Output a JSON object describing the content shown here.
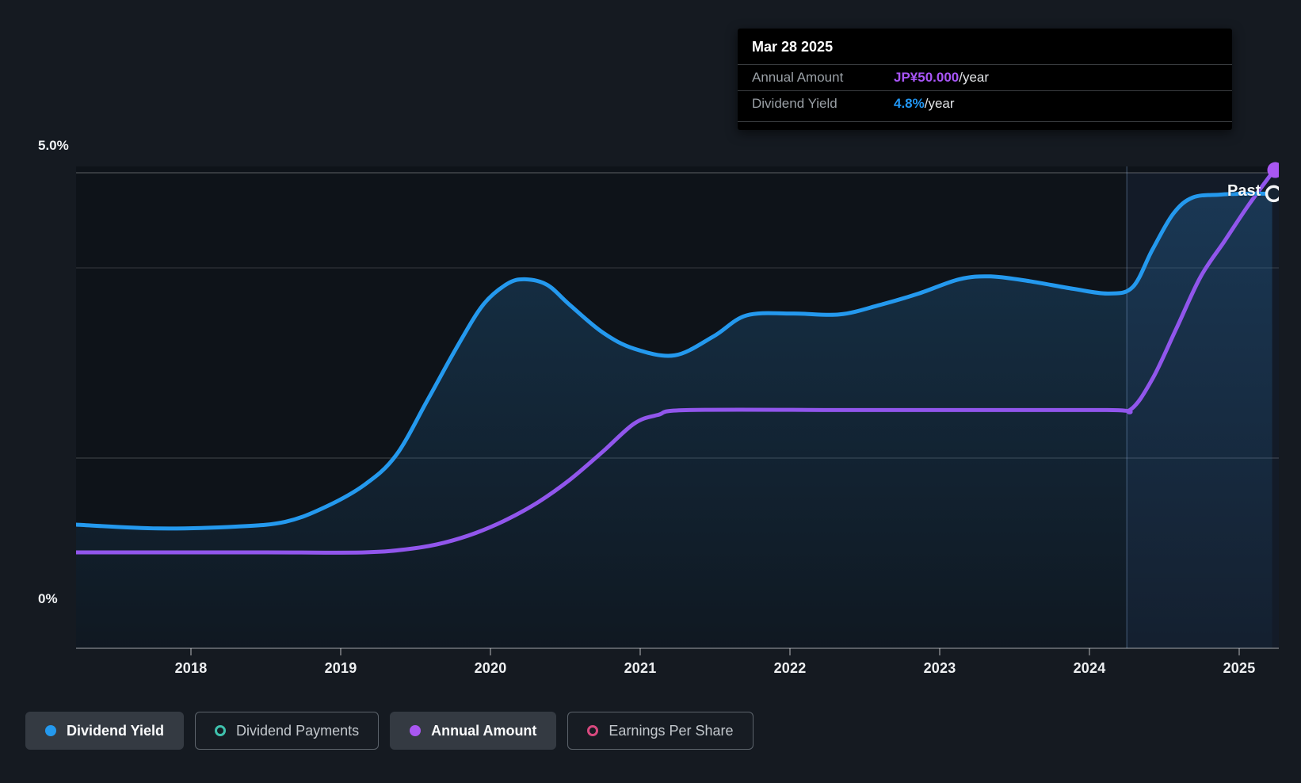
{
  "page": {
    "background": "#151a21",
    "past_label": "Past"
  },
  "tooltip": {
    "date": "Mar 28 2025",
    "rows": [
      {
        "label": "Annual Amount",
        "value": "JP¥50.000",
        "suffix": "/year",
        "color": "#a855f7"
      },
      {
        "label": "Dividend Yield",
        "value": "4.8%",
        "suffix": "/year",
        "color": "#2196f3"
      }
    ]
  },
  "y_axis": {
    "top_label": "5.0%",
    "bottom_label": "0%"
  },
  "x_axis": {
    "years": [
      "2018",
      "2019",
      "2020",
      "2021",
      "2022",
      "2023",
      "2024",
      "2025"
    ]
  },
  "legend": {
    "items": [
      {
        "label": "Dividend Yield",
        "color": "#2499ee",
        "style": "filled",
        "active": true
      },
      {
        "label": "Dividend Payments",
        "color": "#3fc1ad",
        "style": "ring",
        "active": false
      },
      {
        "label": "Annual Amount",
        "color": "#a957f2",
        "style": "filled",
        "active": true
      },
      {
        "label": "Earnings Per Share",
        "color": "#d8497f",
        "style": "ring",
        "active": false
      }
    ]
  },
  "chart_data": {
    "type": "area",
    "x_range_years": [
      2017.23,
      2025.27
    ],
    "ylim_pct": [
      0,
      5
    ],
    "gridlines_pct": [
      5,
      4,
      2
    ],
    "yaxis_tick_labels": [
      "5.0%",
      "0%"
    ],
    "x_tick_years": [
      2018,
      2019,
      2020,
      2021,
      2022,
      2023,
      2024,
      2025
    ],
    "divider_year": 2024.25,
    "grid": true,
    "legend_position": "bottom",
    "series": [
      {
        "name": "Dividend Yield",
        "unit": "%",
        "color": "#2499ee",
        "fill": true,
        "marker_end": "open-circle",
        "points": [
          [
            2017.23,
            1.3
          ],
          [
            2017.78,
            1.26
          ],
          [
            2018.31,
            1.28
          ],
          [
            2018.63,
            1.33
          ],
          [
            2018.89,
            1.48
          ],
          [
            2019.16,
            1.72
          ],
          [
            2019.37,
            2.03
          ],
          [
            2019.58,
            2.61
          ],
          [
            2019.77,
            3.15
          ],
          [
            2019.95,
            3.61
          ],
          [
            2020.11,
            3.83
          ],
          [
            2020.23,
            3.88
          ],
          [
            2020.38,
            3.82
          ],
          [
            2020.53,
            3.61
          ],
          [
            2020.75,
            3.32
          ],
          [
            2020.96,
            3.15
          ],
          [
            2021.23,
            3.08
          ],
          [
            2021.49,
            3.28
          ],
          [
            2021.71,
            3.5
          ],
          [
            2022.02,
            3.52
          ],
          [
            2022.33,
            3.51
          ],
          [
            2022.6,
            3.61
          ],
          [
            2022.86,
            3.73
          ],
          [
            2023.13,
            3.88
          ],
          [
            2023.34,
            3.91
          ],
          [
            2023.6,
            3.86
          ],
          [
            2023.89,
            3.78
          ],
          [
            2024.13,
            3.73
          ],
          [
            2024.29,
            3.8
          ],
          [
            2024.42,
            4.19
          ],
          [
            2024.56,
            4.57
          ],
          [
            2024.69,
            4.74
          ],
          [
            2024.87,
            4.77
          ],
          [
            2025.03,
            4.78
          ],
          [
            2025.22,
            4.78
          ]
        ]
      },
      {
        "name": "Annual Amount",
        "unit": "JP¥/year",
        "color": "#9156ec",
        "fill": false,
        "marker_end": "filled-circle",
        "axis_max_jpy": 50,
        "points": [
          [
            2017.23,
            9.9
          ],
          [
            2018.5,
            9.9
          ],
          [
            2019.16,
            9.9
          ],
          [
            2019.48,
            10.3
          ],
          [
            2019.69,
            10.9
          ],
          [
            2019.9,
            11.9
          ],
          [
            2020.11,
            13.3
          ],
          [
            2020.32,
            15.1
          ],
          [
            2020.53,
            17.4
          ],
          [
            2020.75,
            20.3
          ],
          [
            2020.96,
            23.2
          ],
          [
            2021.12,
            24.1
          ],
          [
            2021.33,
            24.6
          ],
          [
            2022.5,
            24.6
          ],
          [
            2024.1,
            24.6
          ],
          [
            2024.27,
            24.6
          ],
          [
            2024.42,
            27.8
          ],
          [
            2024.58,
            33.0
          ],
          [
            2024.74,
            38.3
          ],
          [
            2024.9,
            42.0
          ],
          [
            2025.06,
            45.7
          ],
          [
            2025.23,
            49.3
          ]
        ]
      }
    ]
  }
}
